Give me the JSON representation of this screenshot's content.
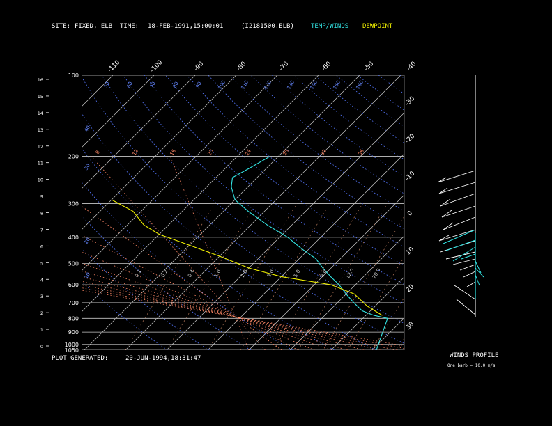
{
  "header": {
    "site_label": "SITE:",
    "site_value": "FIXED, ELB",
    "time_label": "TIME:",
    "time_value": "18-FEB-1991,15:00:01",
    "file_value": "(I2181500.ELB)",
    "temp_winds": "TEMP/WINDS",
    "dewpoint": "DEWPOINT"
  },
  "footer": {
    "generated_label": "PLOT GENERATED:",
    "generated_value": "20-JUN-1994,18:31:47",
    "winds_profile": "WINDS PROFILE",
    "barb_note": "One barb = 10.0 m/s"
  },
  "colors": {
    "temp": "#33e6e6",
    "dewpoint": "#f2f200",
    "isobar": "#c8c8c8",
    "isotherm": "#c8c8c8",
    "dry_adiabat": "#5577ff",
    "moist_adiabat": "#ff8866",
    "mixing_ratio": "#cc8866"
  },
  "chart_data": {
    "type": "line",
    "title": "Skew-T Log-P sounding",
    "pressure_levels_hPa": [
      "100",
      "200",
      "300",
      "400",
      "500",
      "600",
      "700",
      "800",
      "900",
      "1000",
      "1050"
    ],
    "height_km_ticks": [
      "0",
      "1",
      "2",
      "3",
      "4",
      "5",
      "6",
      "7",
      "8",
      "9",
      "10",
      "11",
      "12",
      "13",
      "14",
      "15",
      "16"
    ],
    "isotherm_labels_top": [
      "-110",
      "-100",
      "-90",
      "-80",
      "-70",
      "-60",
      "-50",
      "-40"
    ],
    "isotherm_labels_right": [
      "-30",
      "-20",
      "-10",
      "0",
      "10",
      "20",
      "30"
    ],
    "dry_adiabat_labels": [
      "10",
      "20",
      "30",
      "40",
      "50",
      "60",
      "70",
      "80",
      "90",
      "100",
      "110",
      "120",
      "130",
      "140",
      "150",
      "160"
    ],
    "moist_adiabat_labels": [
      "8",
      "12",
      "16",
      "20",
      "24",
      "28",
      "32",
      "36"
    ],
    "mixing_ratio_labels": [
      "0.1",
      "0.2",
      "0.4",
      "1.0",
      "2.0",
      "3.0",
      "5.0",
      "8.0",
      "12.0",
      "20.0"
    ],
    "temperature_profile": [
      {
        "p": 1050,
        "t": 21
      },
      {
        "p": 800,
        "t": 16
      },
      {
        "p": 780,
        "t": 12
      },
      {
        "p": 750,
        "t": 8
      },
      {
        "p": 700,
        "t": 4
      },
      {
        "p": 650,
        "t": 0
      },
      {
        "p": 600,
        "t": -4
      },
      {
        "p": 560,
        "t": -8
      },
      {
        "p": 520,
        "t": -12
      },
      {
        "p": 480,
        "t": -16
      },
      {
        "p": 440,
        "t": -22
      },
      {
        "p": 400,
        "t": -28
      },
      {
        "p": 360,
        "t": -36
      },
      {
        "p": 320,
        "t": -44
      },
      {
        "p": 290,
        "t": -50
      },
      {
        "p": 260,
        "t": -54
      },
      {
        "p": 240,
        "t": -56
      },
      {
        "p": 220,
        "t": -54
      },
      {
        "p": 200,
        "t": -52
      }
    ],
    "dewpoint_profile": [
      {
        "p": 780,
        "t": 14
      },
      {
        "p": 720,
        "t": 8
      },
      {
        "p": 650,
        "t": 2
      },
      {
        "p": 600,
        "t": -6
      },
      {
        "p": 560,
        "t": -20
      },
      {
        "p": 520,
        "t": -30
      },
      {
        "p": 470,
        "t": -40
      },
      {
        "p": 420,
        "t": -52
      },
      {
        "p": 390,
        "t": -60
      },
      {
        "p": 360,
        "t": -66
      },
      {
        "p": 320,
        "t": -72
      },
      {
        "p": 290,
        "t": -80
      }
    ],
    "xlim": [
      -40,
      40
    ],
    "ylim": [
      1050,
      100
    ],
    "ylabel": "",
    "xlabel": ""
  }
}
